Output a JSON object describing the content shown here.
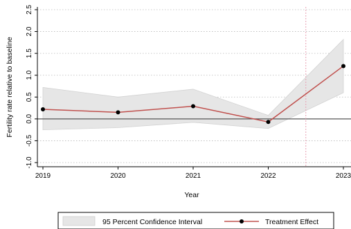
{
  "chart_data": {
    "type": "line",
    "title": "",
    "xlabel": "Year",
    "ylabel": "Fertility rate relative to baseline",
    "x": [
      2019,
      2020,
      2021,
      2022,
      2023
    ],
    "xticks": [
      "2019",
      "2020",
      "2021",
      "2022",
      "2023"
    ],
    "yticks": [
      "-1.0",
      "-0.5",
      "0.0",
      "0.5",
      "1.0",
      "1.5",
      "2.0",
      "2.5"
    ],
    "ylim": [
      -1.0,
      2.5
    ],
    "grid": true,
    "series": [
      {
        "name": "Treatment Effect",
        "values": [
          0.22,
          0.15,
          0.29,
          -0.07,
          1.21
        ],
        "color": "#c0504d"
      }
    ],
    "confidence_interval": {
      "name": "95 Percent Confidence Interval",
      "lower": [
        -0.25,
        -0.2,
        -0.08,
        -0.22,
        0.6
      ],
      "upper": [
        0.72,
        0.5,
        0.68,
        0.08,
        1.82
      ],
      "color": "#e6e6e6"
    },
    "reference_lines": {
      "zero": 0.0,
      "vertical": 2022.5,
      "vertical_color": "#e8a0b4",
      "zero_color": "#555555"
    },
    "legend_position": "bottom"
  }
}
